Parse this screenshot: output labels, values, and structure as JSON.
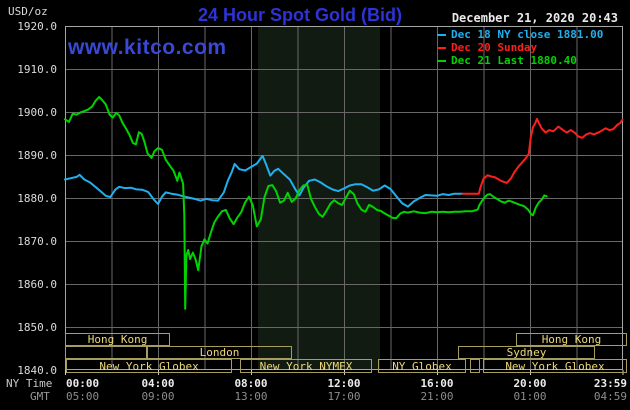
{
  "header": {
    "unit": "USD/oz",
    "title": "24 Hour Spot Gold (Bid)",
    "datetime": "December 21, 2020 20:43",
    "watermark": "www.kitco.com"
  },
  "legend": {
    "items": [
      {
        "label": "Dec 18 NY close 1881.00",
        "color": "#1fb0f0"
      },
      {
        "label": "Dec 20 Sunday",
        "color": "#ff1e1e"
      },
      {
        "label": "Dec 21 Last 1880.40",
        "color": "#00d300"
      }
    ]
  },
  "axes": {
    "y_ticks": [
      "1920.0",
      "1910.0",
      "1900.0",
      "1890.0",
      "1880.0",
      "1870.0",
      "1860.0",
      "1850.0",
      "1840.0"
    ],
    "x_rows": [
      {
        "label": "NY Time",
        "ticks": [
          "00:00",
          "04:00",
          "08:00",
          "12:00",
          "16:00",
          "20:00",
          "23:59"
        ]
      },
      {
        "label": "GMT",
        "ticks": [
          "05:00",
          "09:00",
          "13:00",
          "17:00",
          "21:00",
          "01:00",
          "04:59"
        ]
      }
    ],
    "x_tick_hours": [
      0,
      4,
      8,
      12,
      16,
      20,
      23.983
    ]
  },
  "sessions": {
    "rows": [
      {
        "boxes": [
          {
            "label": "Hong Kong",
            "t0": 0,
            "t1": 4.52
          },
          {
            "label": "Hong Kong",
            "t0": 19.4,
            "t1": 24.17
          }
        ]
      },
      {
        "boxes": [
          {
            "label": "",
            "t0": 0,
            "t1": 3.53
          },
          {
            "label": "London",
            "t0": 3.53,
            "t1": 9.76
          },
          {
            "label": "Sydney",
            "t0": 16.9,
            "t1": 22.8
          }
        ]
      },
      {
        "boxes": [
          {
            "label": "New York Globex",
            "t0": 0.05,
            "t1": 7.18
          },
          {
            "label": "New York NYMEX",
            "t0": 7.53,
            "t1": 13.2
          },
          {
            "label": "NY Globex",
            "t0": 13.46,
            "t1": 17.25
          },
          {
            "label": "",
            "t0": 17.42,
            "t1": 17.85
          },
          {
            "label": "New York Globex",
            "t0": 17.98,
            "t1": 24.17
          }
        ]
      }
    ]
  },
  "chart_data": {
    "type": "line",
    "title": "24 Hour Spot Gold (Bid)",
    "ylabel": "USD/oz",
    "x_unit": "hours, NY time",
    "xlim": [
      0,
      24
    ],
    "ylim": [
      1840,
      1920
    ],
    "y_grid_step": 10,
    "x_grid_step_hours": 2,
    "grid": true,
    "highlight_band_hours": [
      8.3,
      13.55
    ],
    "highlight_band_color": "#121b12",
    "legend_position": "top-right",
    "series": [
      {
        "name": "Dec 18 NY close 1881.00",
        "color": "#1fb0f0",
        "points": [
          [
            0,
            1884.3
          ],
          [
            0.25,
            1884.6
          ],
          [
            0.5,
            1884.9
          ],
          [
            0.63,
            1885.4
          ],
          [
            0.83,
            1884.3
          ],
          [
            1.08,
            1883.6
          ],
          [
            1.33,
            1882.5
          ],
          [
            1.55,
            1881.5
          ],
          [
            1.75,
            1880.5
          ],
          [
            1.95,
            1880.2
          ],
          [
            2.17,
            1882.0
          ],
          [
            2.33,
            1882.6
          ],
          [
            2.58,
            1882.3
          ],
          [
            2.83,
            1882.4
          ],
          [
            3.08,
            1882.0
          ],
          [
            3.33,
            1881.9
          ],
          [
            3.58,
            1881.4
          ],
          [
            3.83,
            1879.6
          ],
          [
            4,
            1878.6
          ],
          [
            4.17,
            1880.3
          ],
          [
            4.33,
            1881.3
          ],
          [
            4.58,
            1881.0
          ],
          [
            4.83,
            1880.8
          ],
          [
            5.08,
            1880.4
          ],
          [
            5.33,
            1880.1
          ],
          [
            5.58,
            1879.8
          ],
          [
            5.83,
            1879.4
          ],
          [
            6.08,
            1879.8
          ],
          [
            6.33,
            1879.5
          ],
          [
            6.58,
            1879.4
          ],
          [
            6.83,
            1881.3
          ],
          [
            7,
            1884.0
          ],
          [
            7.17,
            1886.0
          ],
          [
            7.3,
            1887.9
          ],
          [
            7.5,
            1886.7
          ],
          [
            7.75,
            1886.4
          ],
          [
            8,
            1887.2
          ],
          [
            8.25,
            1888.0
          ],
          [
            8.5,
            1889.8
          ],
          [
            8.67,
            1887.5
          ],
          [
            8.83,
            1885.2
          ],
          [
            9,
            1886.3
          ],
          [
            9.17,
            1886.8
          ],
          [
            9.42,
            1885.5
          ],
          [
            9.67,
            1884.3
          ],
          [
            9.92,
            1881.9
          ],
          [
            10.08,
            1880.6
          ],
          [
            10.25,
            1882.3
          ],
          [
            10.5,
            1884.0
          ],
          [
            10.75,
            1884.3
          ],
          [
            11,
            1883.6
          ],
          [
            11.25,
            1882.7
          ],
          [
            11.5,
            1882.0
          ],
          [
            11.75,
            1881.6
          ],
          [
            12,
            1882.2
          ],
          [
            12.25,
            1882.9
          ],
          [
            12.5,
            1883.2
          ],
          [
            12.75,
            1883.2
          ],
          [
            13,
            1882.5
          ],
          [
            13.25,
            1881.7
          ],
          [
            13.5,
            1882.0
          ],
          [
            13.75,
            1882.9
          ],
          [
            14,
            1882.1
          ],
          [
            14.25,
            1880.4
          ],
          [
            14.5,
            1878.8
          ],
          [
            14.75,
            1878.0
          ],
          [
            15,
            1879.2
          ],
          [
            15.25,
            1880.0
          ],
          [
            15.5,
            1880.7
          ],
          [
            15.75,
            1880.6
          ],
          [
            16,
            1880.5
          ],
          [
            16.25,
            1880.9
          ],
          [
            16.5,
            1880.7
          ],
          [
            16.75,
            1881.0
          ],
          [
            17.1,
            1881.0
          ]
        ]
      },
      {
        "name": "Dec 20 Sunday",
        "color": "#ff1e1e",
        "points": [
          [
            17.1,
            1881.0
          ],
          [
            17.5,
            1881.0
          ],
          [
            17.8,
            1881.0
          ],
          [
            17.87,
            1882.5
          ],
          [
            18,
            1884.5
          ],
          [
            18.17,
            1885.3
          ],
          [
            18.33,
            1885.0
          ],
          [
            18.5,
            1884.8
          ],
          [
            18.75,
            1884.0
          ],
          [
            19,
            1883.5
          ],
          [
            19.17,
            1884.5
          ],
          [
            19.33,
            1886.0
          ],
          [
            19.5,
            1887.3
          ],
          [
            19.67,
            1888.3
          ],
          [
            19.83,
            1889.3
          ],
          [
            19.95,
            1890.3
          ],
          [
            20.03,
            1894.0
          ],
          [
            20.13,
            1896.5
          ],
          [
            20.22,
            1897.3
          ],
          [
            20.3,
            1898.4
          ],
          [
            20.38,
            1897.5
          ],
          [
            20.5,
            1896.2
          ],
          [
            20.67,
            1895.2
          ],
          [
            20.83,
            1895.8
          ],
          [
            21,
            1895.5
          ],
          [
            21.22,
            1896.6
          ],
          [
            21.42,
            1895.8
          ],
          [
            21.58,
            1895.2
          ],
          [
            21.75,
            1895.8
          ],
          [
            21.92,
            1895.2
          ],
          [
            22.08,
            1894.3
          ],
          [
            22.25,
            1894.0
          ],
          [
            22.42,
            1894.8
          ],
          [
            22.58,
            1895.1
          ],
          [
            22.75,
            1894.8
          ],
          [
            23,
            1895.4
          ],
          [
            23.25,
            1896.2
          ],
          [
            23.42,
            1895.8
          ],
          [
            23.58,
            1896.0
          ],
          [
            23.75,
            1897.0
          ],
          [
            23.87,
            1897.4
          ],
          [
            23.98,
            1898.2
          ]
        ]
      },
      {
        "name": "Dec 21 Last 1880.40",
        "color": "#00d300",
        "points": [
          [
            0,
            1898.3
          ],
          [
            0.17,
            1897.7
          ],
          [
            0.33,
            1899.6
          ],
          [
            0.5,
            1899.4
          ],
          [
            0.67,
            1899.9
          ],
          [
            0.83,
            1900.2
          ],
          [
            1,
            1900.6
          ],
          [
            1.17,
            1901.3
          ],
          [
            1.33,
            1902.7
          ],
          [
            1.47,
            1903.5
          ],
          [
            1.58,
            1902.9
          ],
          [
            1.75,
            1901.8
          ],
          [
            1.92,
            1899.4
          ],
          [
            2.05,
            1898.7
          ],
          [
            2.2,
            1899.8
          ],
          [
            2.33,
            1899.2
          ],
          [
            2.48,
            1897.4
          ],
          [
            2.62,
            1896.2
          ],
          [
            2.78,
            1894.6
          ],
          [
            2.92,
            1892.8
          ],
          [
            3.05,
            1892.5
          ],
          [
            3.18,
            1895.3
          ],
          [
            3.3,
            1894.9
          ],
          [
            3.42,
            1893.0
          ],
          [
            3.55,
            1890.4
          ],
          [
            3.72,
            1889.3
          ],
          [
            3.85,
            1890.9
          ],
          [
            4,
            1891.6
          ],
          [
            4.17,
            1891.2
          ],
          [
            4.33,
            1888.9
          ],
          [
            4.5,
            1887.6
          ],
          [
            4.67,
            1886.3
          ],
          [
            4.83,
            1884.0
          ],
          [
            4.92,
            1885.9
          ],
          [
            5,
            1884.6
          ],
          [
            5.08,
            1883.3
          ],
          [
            5.13,
            1876.0
          ],
          [
            5.17,
            1854.2
          ],
          [
            5.22,
            1866.6
          ],
          [
            5.3,
            1867.9
          ],
          [
            5.38,
            1865.8
          ],
          [
            5.5,
            1867.3
          ],
          [
            5.62,
            1865.6
          ],
          [
            5.73,
            1863.2
          ],
          [
            5.87,
            1868.8
          ],
          [
            6,
            1870.4
          ],
          [
            6.13,
            1869.4
          ],
          [
            6.27,
            1871.9
          ],
          [
            6.42,
            1874.3
          ],
          [
            6.58,
            1875.7
          ],
          [
            6.75,
            1876.9
          ],
          [
            6.92,
            1877.2
          ],
          [
            7.08,
            1875.3
          ],
          [
            7.25,
            1873.9
          ],
          [
            7.42,
            1875.5
          ],
          [
            7.58,
            1876.7
          ],
          [
            7.75,
            1879.0
          ],
          [
            7.92,
            1880.3
          ],
          [
            8.08,
            1878.2
          ],
          [
            8.25,
            1873.4
          ],
          [
            8.42,
            1875.0
          ],
          [
            8.58,
            1880.2
          ],
          [
            8.75,
            1882.8
          ],
          [
            8.92,
            1883.0
          ],
          [
            9.08,
            1881.6
          ],
          [
            9.25,
            1878.9
          ],
          [
            9.42,
            1879.4
          ],
          [
            9.58,
            1881.2
          ],
          [
            9.75,
            1879.1
          ],
          [
            9.92,
            1879.9
          ],
          [
            10.08,
            1881.8
          ],
          [
            10.25,
            1882.9
          ],
          [
            10.42,
            1883.1
          ],
          [
            10.58,
            1879.8
          ],
          [
            10.75,
            1877.9
          ],
          [
            10.92,
            1876.3
          ],
          [
            11.08,
            1875.6
          ],
          [
            11.25,
            1877.1
          ],
          [
            11.42,
            1878.7
          ],
          [
            11.58,
            1879.5
          ],
          [
            11.75,
            1878.8
          ],
          [
            11.92,
            1878.4
          ],
          [
            12.08,
            1880.1
          ],
          [
            12.25,
            1881.7
          ],
          [
            12.42,
            1880.9
          ],
          [
            12.58,
            1878.7
          ],
          [
            12.75,
            1877.3
          ],
          [
            12.92,
            1876.8
          ],
          [
            13.08,
            1878.4
          ],
          [
            13.25,
            1877.9
          ],
          [
            13.42,
            1877.2
          ],
          [
            13.58,
            1877.0
          ],
          [
            13.75,
            1876.4
          ],
          [
            13.92,
            1875.9
          ],
          [
            14.08,
            1875.4
          ],
          [
            14.25,
            1875.3
          ],
          [
            14.42,
            1876.4
          ],
          [
            14.58,
            1876.8
          ],
          [
            14.75,
            1876.6
          ],
          [
            15,
            1876.9
          ],
          [
            15.25,
            1876.6
          ],
          [
            15.5,
            1876.5
          ],
          [
            15.75,
            1876.8
          ],
          [
            16,
            1876.7
          ],
          [
            16.25,
            1876.8
          ],
          [
            16.5,
            1876.7
          ],
          [
            16.75,
            1876.8
          ],
          [
            17,
            1876.8
          ],
          [
            17.25,
            1876.9
          ],
          [
            17.5,
            1876.9
          ],
          [
            17.75,
            1877.3
          ],
          [
            17.83,
            1878.4
          ],
          [
            17.93,
            1879.3
          ],
          [
            18.05,
            1880.2
          ],
          [
            18.17,
            1880.8
          ],
          [
            18.28,
            1880.9
          ],
          [
            18.42,
            1880.3
          ],
          [
            18.58,
            1879.8
          ],
          [
            18.75,
            1879.2
          ],
          [
            18.92,
            1878.9
          ],
          [
            19.08,
            1879.4
          ],
          [
            19.25,
            1879.1
          ],
          [
            19.42,
            1878.7
          ],
          [
            19.58,
            1878.4
          ],
          [
            19.75,
            1878.1
          ],
          [
            19.92,
            1877.3
          ],
          [
            20.05,
            1876.2
          ],
          [
            20.13,
            1876.0
          ],
          [
            20.25,
            1877.8
          ],
          [
            20.37,
            1878.9
          ],
          [
            20.5,
            1879.6
          ],
          [
            20.62,
            1880.6
          ],
          [
            20.72,
            1880.4
          ]
        ]
      }
    ]
  }
}
